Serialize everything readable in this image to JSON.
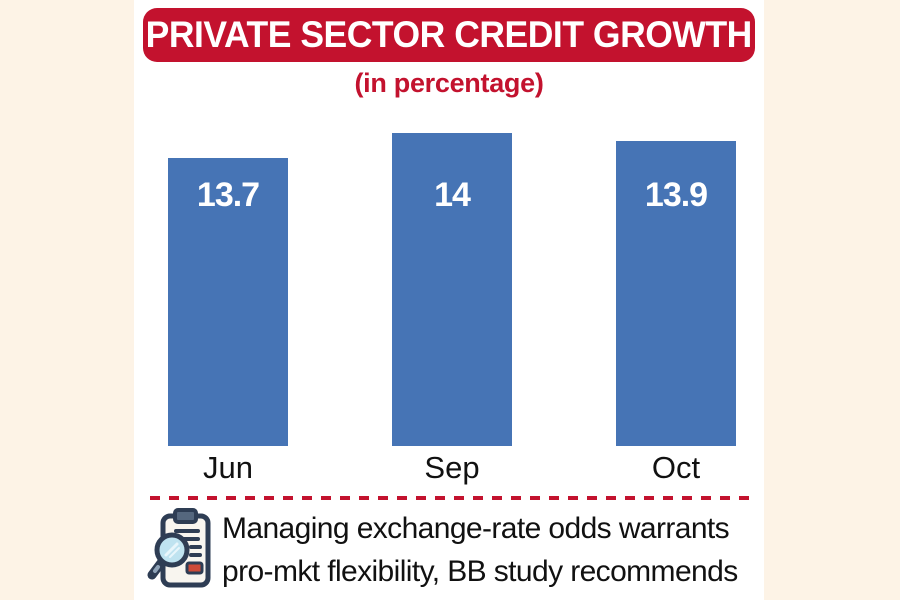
{
  "page": {
    "background_color": "#fdf3e6",
    "panel_color": "#ffffff"
  },
  "header": {
    "title": "PRIVATE SECTOR CREDIT GROWTH",
    "subtitle": "(in percentage)",
    "banner_color": "#c3122e",
    "title_text_color": "#ffffff"
  },
  "chart_data": {
    "type": "bar",
    "title": "PRIVATE SECTOR CREDIT GROWTH",
    "subtitle": "(in percentage)",
    "categories": [
      "Jun",
      "Sep",
      "Oct"
    ],
    "values": [
      13.7,
      14,
      13.9
    ],
    "value_labels": [
      "13.7",
      "14",
      "13.9"
    ],
    "bar_color": "#4674b5",
    "value_label_color": "#ffffff",
    "category_label_color": "#111111",
    "grid": false,
    "legend": false,
    "axis_truncated": true
  },
  "divider": {
    "style": "dashed",
    "color": "#c3122e"
  },
  "footer": {
    "icon": "magnifier-clipboard-icon",
    "line1": "Managing exchange-rate odds warrants",
    "line2": "pro-mkt flexibility, BB study recommends"
  }
}
